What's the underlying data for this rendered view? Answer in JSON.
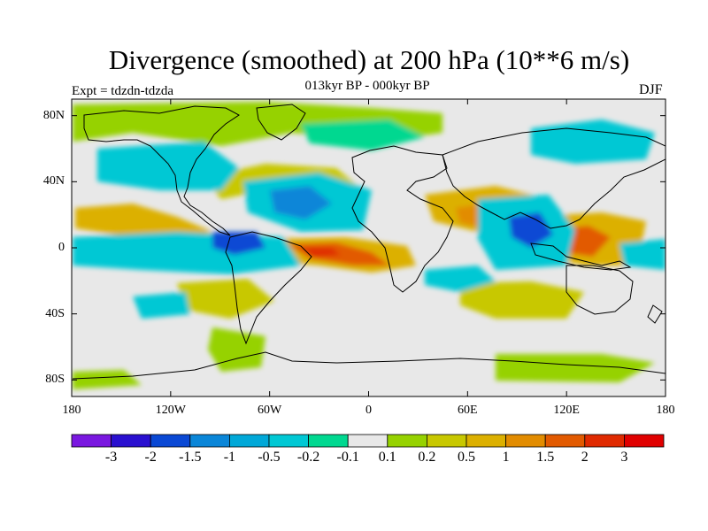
{
  "title": "Divergence (smoothed) at 200 hPa (10**6 m/s)",
  "subtitle": "013kyr BP - 000kyr BP",
  "left_label": "Expt = tdzdn-tdzda",
  "right_label": "DJF",
  "map": {
    "projection": "cylindrical equidistant",
    "lon_range": [
      -180,
      180
    ],
    "lat_range": [
      -90,
      90
    ],
    "lat_ticks": [
      {
        "value": 80,
        "label": "80N"
      },
      {
        "value": 40,
        "label": "40N"
      },
      {
        "value": 0,
        "label": "0"
      },
      {
        "value": -40,
        "label": "40S"
      },
      {
        "value": -80,
        "label": "80S"
      }
    ],
    "lon_ticks": [
      {
        "value": -180,
        "label": "180"
      },
      {
        "value": -120,
        "label": "120W"
      },
      {
        "value": -60,
        "label": "60W"
      },
      {
        "value": 0,
        "label": "0"
      },
      {
        "value": 60,
        "label": "60E"
      },
      {
        "value": 120,
        "label": "120E"
      },
      {
        "value": 180,
        "label": "180"
      }
    ],
    "background_color": "#e8e8e8",
    "coastline_color": "#000000"
  },
  "colorbar": {
    "colors": [
      "#7a18e0",
      "#2a10d0",
      "#0a48d4",
      "#0a86d8",
      "#00a8d8",
      "#00c8d4",
      "#00d890",
      "#e8e8e8",
      "#96d200",
      "#c8c800",
      "#dcb000",
      "#e28c00",
      "#e25a00",
      "#e02a00",
      "#e00000"
    ],
    "labels": [
      "-3",
      "-2",
      "-1.5",
      "-1",
      "-0.5",
      "-0.2",
      "-0.1",
      "0.1",
      "0.2",
      "0.5",
      "1",
      "1.5",
      "2",
      "3"
    ]
  }
}
